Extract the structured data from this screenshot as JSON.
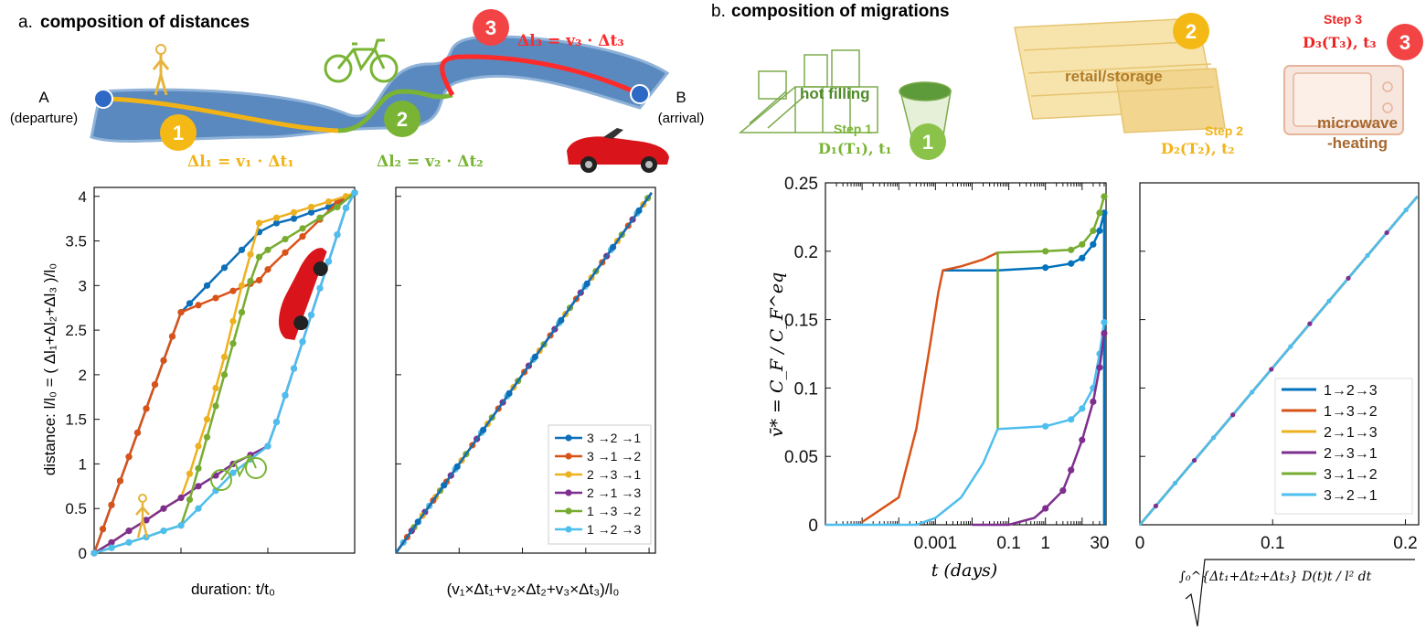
{
  "panel_a": {
    "label": "a.",
    "title": "composition of distances",
    "point_a": "A",
    "point_a_sub": "(departure)",
    "point_b": "B",
    "point_b_sub": "(arrival)",
    "eq1": "Δl₁ = v₁ · Δt₁",
    "eq2": "Δl₂ = v₂ · Δt₂",
    "eq3": "Δl₃ = v₃ · Δt₃",
    "num1": "1",
    "num2": "2",
    "num3": "3",
    "colors": {
      "walk": "#f2b316",
      "bike": "#79b434",
      "car": "#ff2a2a",
      "road": "#5a89bf"
    }
  },
  "panel_b": {
    "label": "b.",
    "title": "composition of migrations",
    "hot_filling": "hot filling",
    "step1": "Step 1",
    "step1_eq": "D₁(T₁), t₁",
    "retail": "retail/storage",
    "step2": "Step 2",
    "step2_eq": "D₂(T₂), t₂",
    "step3": "Step 3",
    "step3_eq": "D₃(T₃), t₃",
    "microwave1": "microwave",
    "microwave2": "-heating",
    "num1": "1",
    "num2": "2",
    "num3": "3"
  },
  "chart_data": [
    {
      "type": "line",
      "ylabel": "distance: l/l₀ = ( Δl₁+Δl₂+Δl₃ )/l₀",
      "xlabel": "duration: t/t₀",
      "xlim": [
        0,
        3
      ],
      "ylim": [
        0,
        4.1
      ],
      "yticks": [
        "0",
        "0.5",
        "1",
        "1.5",
        "2",
        "2.5",
        "3",
        "3.5",
        "4"
      ],
      "series": [
        {
          "name": "3 →2 →1",
          "color": "#0d6fb8",
          "x": [
            0,
            0.1,
            0.2,
            0.3,
            0.4,
            0.5,
            0.6,
            0.7,
            0.8,
            0.9,
            1.0,
            1.1,
            1.3,
            1.5,
            1.7,
            1.9,
            2.1,
            2.3,
            2.5,
            2.7,
            2.85,
            3.0
          ],
          "y": [
            0,
            0.27,
            0.54,
            0.81,
            1.08,
            1.35,
            1.62,
            1.89,
            2.16,
            2.43,
            2.7,
            2.8,
            3.0,
            3.2,
            3.4,
            3.6,
            3.7,
            3.75,
            3.82,
            3.88,
            3.96,
            4.04
          ]
        },
        {
          "name": "3 →1 →2",
          "color": "#d95319",
          "x": [
            0,
            0.1,
            0.2,
            0.3,
            0.4,
            0.5,
            0.6,
            0.7,
            0.8,
            0.9,
            1.0,
            1.2,
            1.4,
            1.6,
            1.8,
            1.9,
            2.0,
            2.2,
            2.4,
            2.6,
            2.8,
            3.0
          ],
          "y": [
            0,
            0.27,
            0.54,
            0.81,
            1.08,
            1.35,
            1.62,
            1.89,
            2.16,
            2.43,
            2.7,
            2.78,
            2.86,
            2.94,
            3.02,
            3.06,
            3.18,
            3.37,
            3.55,
            3.74,
            3.93,
            4.04
          ]
        },
        {
          "name": "2 →3 →1",
          "color": "#edb120",
          "x": [
            0,
            0.2,
            0.4,
            0.6,
            0.8,
            1.0,
            1.1,
            1.2,
            1.3,
            1.4,
            1.5,
            1.6,
            1.7,
            1.8,
            1.9,
            2.1,
            2.3,
            2.5,
            2.7,
            2.9,
            3.0
          ],
          "y": [
            0,
            0.12,
            0.25,
            0.37,
            0.5,
            0.62,
            0.89,
            1.2,
            1.5,
            1.85,
            2.2,
            2.6,
            3.0,
            3.35,
            3.7,
            3.76,
            3.82,
            3.88,
            3.94,
            4.0,
            4.04
          ]
        },
        {
          "name": "2 →1 →3",
          "color": "#7e2f8e",
          "x": [
            0,
            0.2,
            0.4,
            0.6,
            0.8,
            1.0,
            1.2,
            1.4,
            1.6,
            1.8,
            2.0,
            2.1,
            2.2,
            2.3,
            2.4,
            2.5,
            2.6,
            2.7,
            2.8,
            2.9,
            3.0
          ],
          "y": [
            0,
            0.12,
            0.25,
            0.37,
            0.5,
            0.62,
            0.75,
            0.87,
            1.0,
            1.1,
            1.2,
            1.47,
            1.77,
            2.07,
            2.37,
            2.67,
            2.97,
            3.27,
            3.57,
            3.87,
            4.04
          ]
        },
        {
          "name": "1 →3 →2",
          "color": "#77ac30",
          "x": [
            0,
            0.2,
            0.4,
            0.6,
            0.8,
            1.0,
            1.1,
            1.2,
            1.3,
            1.4,
            1.5,
            1.6,
            1.7,
            1.8,
            1.9,
            2.0,
            2.2,
            2.4,
            2.6,
            2.8,
            3.0
          ],
          "y": [
            0,
            0.06,
            0.12,
            0.18,
            0.25,
            0.31,
            0.6,
            0.95,
            1.3,
            1.65,
            2.0,
            2.35,
            2.7,
            3.05,
            3.32,
            3.4,
            3.52,
            3.64,
            3.76,
            3.88,
            4.04
          ]
        },
        {
          "name": "1 →2 →3",
          "color": "#4dbeee",
          "x": [
            0,
            0.2,
            0.4,
            0.6,
            0.8,
            1.0,
            1.2,
            1.4,
            1.6,
            1.8,
            2.0,
            2.1,
            2.2,
            2.3,
            2.4,
            2.5,
            2.6,
            2.7,
            2.8,
            2.9,
            3.0
          ],
          "y": [
            0,
            0.06,
            0.12,
            0.18,
            0.25,
            0.31,
            0.5,
            0.7,
            0.9,
            1.05,
            1.2,
            1.47,
            1.77,
            2.07,
            2.37,
            2.67,
            2.97,
            3.27,
            3.57,
            3.87,
            4.04
          ]
        }
      ]
    },
    {
      "type": "line",
      "xlabel": "(v₁×Δt₁+v₂×Δt₂+v₃×Δt₃)/l₀",
      "xlim": [
        0,
        4.1
      ],
      "ylim": [
        0,
        4.1
      ],
      "legend_position": "bottom-right",
      "series": [
        {
          "name": "3 →2 →1",
          "color": "#0d6fb8"
        },
        {
          "name": "3 →1 →2",
          "color": "#d95319"
        },
        {
          "name": "2 →3 →1",
          "color": "#edb120"
        },
        {
          "name": "2 →1 →3",
          "color": "#7e2f8e"
        },
        {
          "name": "1 →3 →2",
          "color": "#77ac30"
        },
        {
          "name": "1 →2 →3",
          "color": "#4dbeee"
        }
      ]
    },
    {
      "type": "line",
      "ylabel": "v̄* = C_F / C_F^eq",
      "xlabel": "t (days)",
      "xscale": "log",
      "xticks": [
        "0.001",
        "0.1",
        "1",
        "30"
      ],
      "yticks": [
        "0",
        "0.05",
        "0.1",
        "0.15",
        "0.2",
        "0.25"
      ],
      "ylim": [
        0,
        0.25
      ],
      "series": [
        {
          "name": "1→2→3",
          "color": "#0072bd",
          "x": [
            0.0016,
            0.05,
            1,
            5,
            10,
            20,
            30,
            40,
            40
          ],
          "y": [
            0.186,
            0.186,
            0.188,
            0.191,
            0.195,
            0.205,
            0.215,
            0.228,
            0.0
          ]
        },
        {
          "name": "3→2→1",
          "color": "#d95319",
          "x": [
            1e-05,
            0.0001,
            0.0003,
            0.0007,
            0.0012,
            0.0016,
            0.005,
            0.02,
            0.05
          ],
          "y": [
            0.002,
            0.02,
            0.07,
            0.13,
            0.17,
            0.186,
            0.189,
            0.194,
            0.199
          ]
        },
        {
          "name": "1→3→2",
          "color": "#77ac30",
          "x": [
            0.05,
            0.05,
            1,
            5,
            10,
            20,
            30,
            40
          ],
          "y": [
            0.07,
            0.199,
            0.2,
            0.201,
            0.205,
            0.215,
            0.228,
            0.24
          ]
        },
        {
          "name": "3→1→2",
          "color": "#4dbeee",
          "x": [
            1e-06,
            0.0003,
            0.001,
            0.005,
            0.02,
            0.05,
            1,
            5,
            10,
            20,
            30,
            40
          ],
          "y": [
            0.0,
            0.0,
            0.005,
            0.02,
            0.045,
            0.07,
            0.072,
            0.077,
            0.085,
            0.1,
            0.125,
            0.148
          ]
        },
        {
          "name": "2→3→1",
          "color": "#7e2f8e",
          "x": [
            0.01,
            0.1,
            0.5,
            1,
            3,
            5,
            10,
            20,
            30,
            40
          ],
          "y": [
            0.0,
            0.0,
            0.005,
            0.012,
            0.025,
            0.04,
            0.062,
            0.09,
            0.115,
            0.14
          ]
        }
      ]
    },
    {
      "type": "line",
      "xlabel": "∫₀^{Δt₁+Δt₂+Δt₃} D(t)t / l² dt",
      "xticks": [
        "0",
        "0.1",
        "0.2"
      ],
      "xlim": [
        0,
        0.21
      ],
      "ylim": [
        0,
        0.25
      ],
      "legend_position": "bottom-right",
      "series": [
        {
          "name": "1→2→3",
          "color": "#0072bd"
        },
        {
          "name": "1→3→2",
          "color": "#d95319"
        },
        {
          "name": "2→1→3",
          "color": "#edb120"
        },
        {
          "name": "2→3→1",
          "color": "#7e2f8e"
        },
        {
          "name": "3→1→2",
          "color": "#77ac30"
        },
        {
          "name": "3→2→1",
          "color": "#4dbeee"
        }
      ]
    }
  ]
}
